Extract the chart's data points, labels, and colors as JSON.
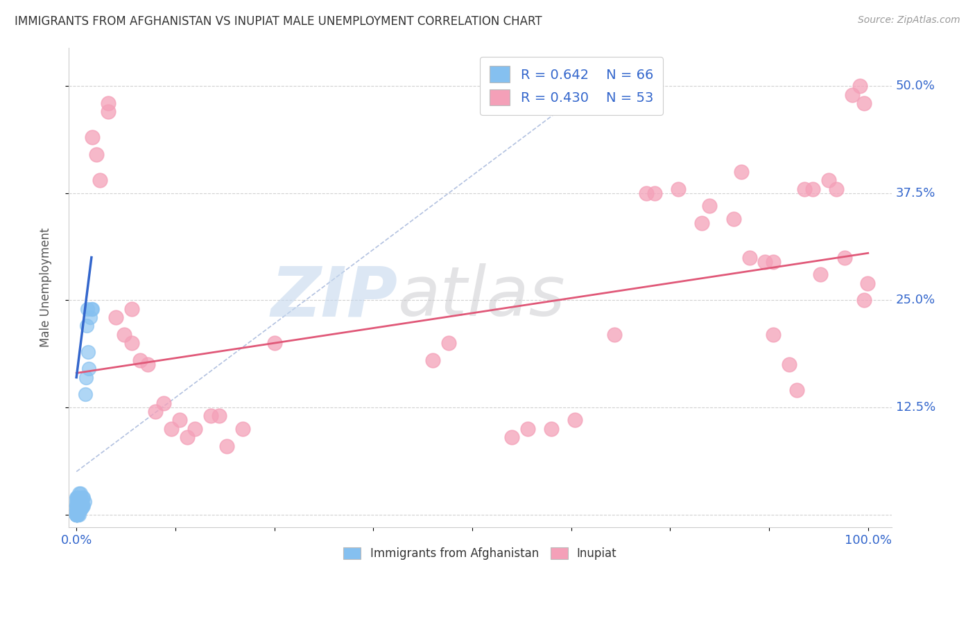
{
  "title": "IMMIGRANTS FROM AFGHANISTAN VS INUPIAT MALE UNEMPLOYMENT CORRELATION CHART",
  "source": "Source: ZipAtlas.com",
  "ylabel": "Male Unemployment",
  "legend_blue_r": "R = 0.642",
  "legend_blue_n": "N = 66",
  "legend_pink_r": "R = 0.430",
  "legend_pink_n": "N = 53",
  "blue_color": "#85C0F0",
  "pink_color": "#F4A0B8",
  "blue_line_color": "#3366CC",
  "pink_line_color": "#E05878",
  "blue_dots": [
    [
      0.0,
      0.0
    ],
    [
      0.0,
      0.0
    ],
    [
      0.0,
      0.0
    ],
    [
      0.0,
      0.0
    ],
    [
      0.0,
      0.0
    ],
    [
      0.0,
      0.0
    ],
    [
      0.0,
      0.002
    ],
    [
      0.0,
      0.005
    ],
    [
      0.0,
      0.005
    ],
    [
      0.0,
      0.01
    ],
    [
      0.0,
      0.01
    ],
    [
      0.0,
      0.01
    ],
    [
      0.0,
      0.015
    ],
    [
      0.0,
      0.02
    ],
    [
      0.001,
      0.0
    ],
    [
      0.001,
      0.0
    ],
    [
      0.001,
      0.0
    ],
    [
      0.001,
      0.0
    ],
    [
      0.001,
      0.0
    ],
    [
      0.001,
      0.0
    ],
    [
      0.001,
      0.0
    ],
    [
      0.001,
      0.005
    ],
    [
      0.001,
      0.005
    ],
    [
      0.001,
      0.005
    ],
    [
      0.001,
      0.01
    ],
    [
      0.001,
      0.01
    ],
    [
      0.001,
      0.015
    ],
    [
      0.001,
      0.02
    ],
    [
      0.001,
      0.02
    ],
    [
      0.002,
      0.0
    ],
    [
      0.002,
      0.0
    ],
    [
      0.002,
      0.005
    ],
    [
      0.002,
      0.008
    ],
    [
      0.002,
      0.01
    ],
    [
      0.002,
      0.015
    ],
    [
      0.002,
      0.02
    ],
    [
      0.003,
      0.0
    ],
    [
      0.003,
      0.005
    ],
    [
      0.003,
      0.01
    ],
    [
      0.003,
      0.015
    ],
    [
      0.003,
      0.02
    ],
    [
      0.003,
      0.025
    ],
    [
      0.004,
      0.005
    ],
    [
      0.004,
      0.01
    ],
    [
      0.004,
      0.015
    ],
    [
      0.005,
      0.005
    ],
    [
      0.005,
      0.01
    ],
    [
      0.005,
      0.025
    ],
    [
      0.006,
      0.01
    ],
    [
      0.006,
      0.015
    ],
    [
      0.007,
      0.008
    ],
    [
      0.007,
      0.015
    ],
    [
      0.008,
      0.01
    ],
    [
      0.008,
      0.02
    ],
    [
      0.009,
      0.01
    ],
    [
      0.009,
      0.02
    ],
    [
      0.01,
      0.015
    ],
    [
      0.011,
      0.14
    ],
    [
      0.012,
      0.16
    ],
    [
      0.013,
      0.22
    ],
    [
      0.014,
      0.24
    ],
    [
      0.015,
      0.19
    ],
    [
      0.016,
      0.17
    ],
    [
      0.017,
      0.23
    ],
    [
      0.019,
      0.24
    ],
    [
      0.02,
      0.24
    ]
  ],
  "pink_dots": [
    [
      0.02,
      0.44
    ],
    [
      0.025,
      0.42
    ],
    [
      0.03,
      0.39
    ],
    [
      0.04,
      0.48
    ],
    [
      0.04,
      0.47
    ],
    [
      0.05,
      0.23
    ],
    [
      0.06,
      0.21
    ],
    [
      0.07,
      0.2
    ],
    [
      0.07,
      0.24
    ],
    [
      0.08,
      0.18
    ],
    [
      0.09,
      0.175
    ],
    [
      0.1,
      0.12
    ],
    [
      0.11,
      0.13
    ],
    [
      0.12,
      0.1
    ],
    [
      0.13,
      0.11
    ],
    [
      0.14,
      0.09
    ],
    [
      0.15,
      0.1
    ],
    [
      0.17,
      0.115
    ],
    [
      0.18,
      0.115
    ],
    [
      0.19,
      0.08
    ],
    [
      0.21,
      0.1
    ],
    [
      0.25,
      0.2
    ],
    [
      0.45,
      0.18
    ],
    [
      0.47,
      0.2
    ],
    [
      0.55,
      0.09
    ],
    [
      0.57,
      0.1
    ],
    [
      0.6,
      0.1
    ],
    [
      0.63,
      0.11
    ],
    [
      0.68,
      0.21
    ],
    [
      0.72,
      0.375
    ],
    [
      0.73,
      0.375
    ],
    [
      0.76,
      0.38
    ],
    [
      0.79,
      0.34
    ],
    [
      0.8,
      0.36
    ],
    [
      0.83,
      0.345
    ],
    [
      0.84,
      0.4
    ],
    [
      0.85,
      0.3
    ],
    [
      0.87,
      0.295
    ],
    [
      0.88,
      0.21
    ],
    [
      0.88,
      0.295
    ],
    [
      0.9,
      0.175
    ],
    [
      0.91,
      0.145
    ],
    [
      0.92,
      0.38
    ],
    [
      0.93,
      0.38
    ],
    [
      0.94,
      0.28
    ],
    [
      0.95,
      0.39
    ],
    [
      0.96,
      0.38
    ],
    [
      0.97,
      0.3
    ],
    [
      0.98,
      0.49
    ],
    [
      0.99,
      0.5
    ],
    [
      0.995,
      0.48
    ],
    [
      0.995,
      0.25
    ],
    [
      0.999,
      0.27
    ]
  ],
  "blue_trend_line": [
    [
      0.0,
      0.16
    ],
    [
      0.019,
      0.3
    ]
  ],
  "pink_trend_line": [
    [
      0.0,
      0.165
    ],
    [
      1.0,
      0.305
    ]
  ],
  "diag_line": [
    [
      0.0,
      0.05
    ],
    [
      0.68,
      0.52
    ]
  ],
  "xlim": [
    -0.01,
    1.03
  ],
  "ylim": [
    -0.015,
    0.545
  ],
  "yticks": [
    0.0,
    0.125,
    0.25,
    0.375,
    0.5
  ],
  "ytick_labels": [
    "",
    "12.5%",
    "25.0%",
    "37.5%",
    "50.0%"
  ],
  "xtick_positions": [
    0.0,
    0.125,
    0.25,
    0.375,
    0.5,
    0.625,
    0.75,
    0.875,
    1.0
  ],
  "xtick_labels": [
    "0.0%",
    "",
    "",
    "",
    "",
    "",
    "",
    "",
    "100.0%"
  ]
}
